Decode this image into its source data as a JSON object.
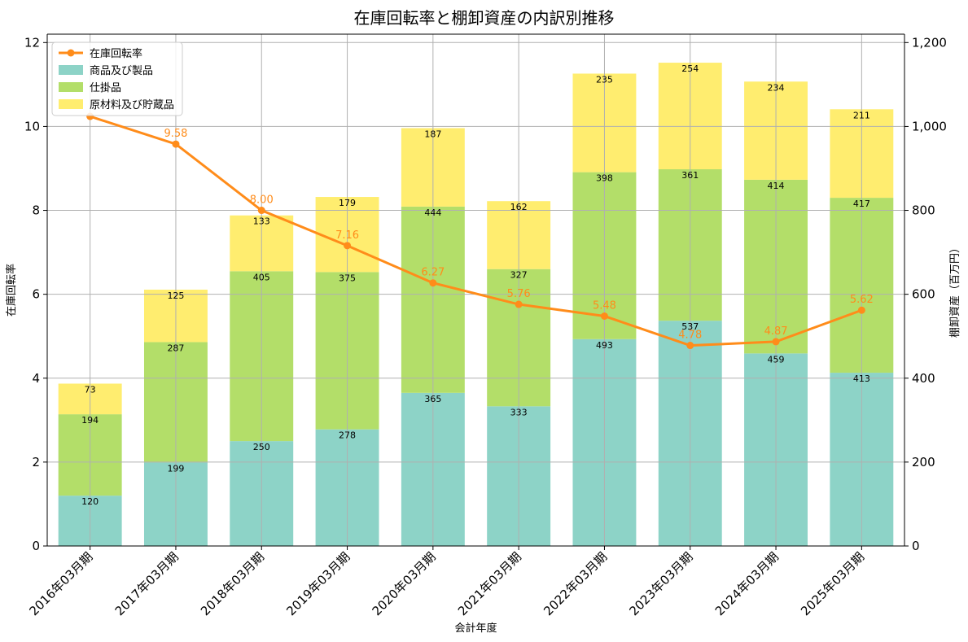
{
  "chart_data": {
    "type": "bar",
    "title": "在庫回転率と棚卸資産の内訳別推移",
    "xlabel": "会計年度",
    "ylabel_left": "在庫回転率",
    "ylabel_right": "棚卸資産（百万円）",
    "categories": [
      "2016年03月期",
      "2017年03月期",
      "2018年03月期",
      "2019年03月期",
      "2020年03月期",
      "2021年03月期",
      "2022年03月期",
      "2023年03月期",
      "2024年03月期",
      "2025年03月期"
    ],
    "left_axis": {
      "min": 0,
      "max": 12.2,
      "ticks": [
        0,
        2,
        4,
        6,
        8,
        10,
        12
      ]
    },
    "right_axis": {
      "min": 0,
      "max": 1220,
      "ticks": [
        0,
        200,
        400,
        600,
        800,
        1000,
        1200
      ],
      "tick_labels": [
        "0",
        "200",
        "400",
        "600",
        "800",
        "1,000",
        "1,200"
      ]
    },
    "grid": true,
    "legend_position": "top-left",
    "line_series": {
      "name": "在庫回転率",
      "color": "#ff8c1a",
      "values": [
        10.24,
        9.58,
        8.0,
        7.16,
        6.27,
        5.76,
        5.48,
        4.78,
        4.87,
        5.62
      ],
      "labels": [
        "",
        "9.58",
        "8.00",
        "7.16",
        "6.27",
        "5.76",
        "5.48",
        "4.78",
        "4.87",
        "5.62"
      ]
    },
    "stacked_series": [
      {
        "name": "商品及び製品",
        "color": "#8dd3c7",
        "values": [
          120,
          199,
          250,
          278,
          365,
          333,
          493,
          537,
          459,
          413
        ]
      },
      {
        "name": "仕掛品",
        "color": "#b3de69",
        "values": [
          194,
          287,
          405,
          375,
          444,
          327,
          398,
          361,
          414,
          417
        ]
      },
      {
        "name": "原材料及び貯蔵品",
        "color": "#ffed6f",
        "values": [
          73,
          125,
          133,
          179,
          187,
          162,
          235,
          254,
          234,
          211
        ]
      }
    ]
  }
}
